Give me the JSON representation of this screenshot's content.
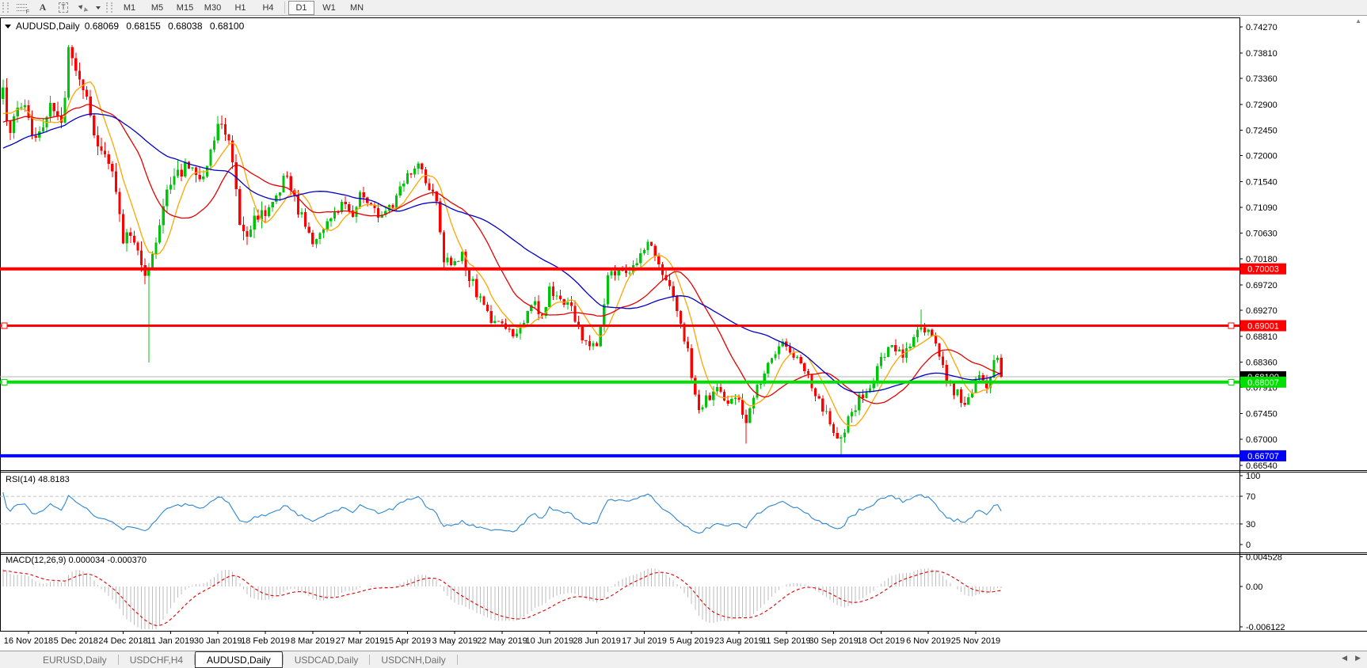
{
  "toolbar": {
    "icon_glyphs": {
      "fib": "F",
      "text": "A",
      "text_label": "T"
    },
    "timeframes": [
      {
        "label": "M1",
        "active": false
      },
      {
        "label": "M5",
        "active": false
      },
      {
        "label": "M15",
        "active": false
      },
      {
        "label": "M30",
        "active": false
      },
      {
        "label": "H1",
        "active": false
      },
      {
        "label": "H4",
        "active": false
      },
      {
        "label": "D1",
        "active": true
      },
      {
        "label": "W1",
        "active": false
      },
      {
        "label": "MN",
        "active": false
      }
    ]
  },
  "chart": {
    "title_symbol": "AUDUSD,Daily",
    "ohlc": {
      "open": "0.68069",
      "high": "0.68155",
      "low": "0.68038",
      "close": "0.68100"
    },
    "collapse_arrow_glyph": "▲"
  },
  "chart_data": {
    "type": "candlestick",
    "symbol": "AUDUSD",
    "timeframe": "Daily",
    "last_close": 0.681,
    "bar_count": 268,
    "bars_per_label": 13,
    "candle_colors": {
      "up": "#00C40A",
      "down": "#FF0000"
    },
    "price_axis_ticks": [
      "0.74270",
      "0.73810",
      "0.73360",
      "0.72900",
      "0.72450",
      "0.72000",
      "0.71540",
      "0.71090",
      "0.70630",
      "0.70180",
      "0.69720",
      "0.69270",
      "0.68810",
      "0.68360",
      "0.67910",
      "0.67450",
      "0.67000",
      "0.66540"
    ],
    "x_axis_labels": [
      "16 Nov 2018",
      "5 Dec 2018",
      "24 Dec 2018",
      "11 Jan 2019",
      "30 Jan 2019",
      "18 Feb 2019",
      "8 Mar 2019",
      "27 Mar 2019",
      "15 Apr 2019",
      "3 May 2019",
      "22 May 2019",
      "10 Jun 2019",
      "28 Jun 2019",
      "17 Jul 2019",
      "5 Aug 2019",
      "23 Aug 2019",
      "11 Sep 2019",
      "30 Sep 2019",
      "18 Oct 2019",
      "6 Nov 2019",
      "25 Nov 2019"
    ],
    "hlines": [
      {
        "price": 0.70003,
        "label": "0.70003",
        "color": "#FF0000",
        "thickness": 4,
        "handles": false
      },
      {
        "price": 0.69001,
        "label": "0.69001",
        "color": "#FF0000",
        "thickness": 3,
        "handles": true
      },
      {
        "price": 0.68007,
        "label": "0.68007",
        "color": "#00E000",
        "thickness": 4,
        "handles": true
      },
      {
        "price": 0.66707,
        "label": "0.66707",
        "color": "#0000FF",
        "thickness": 4,
        "handles": false
      }
    ],
    "current_price": {
      "value": 0.681,
      "label": "0.68100",
      "line_color": "#B4B4B4",
      "badge_color": "#000000"
    },
    "moving_averages": [
      {
        "period": 8,
        "color": "#FFA500",
        "name": "fast"
      },
      {
        "period": 21,
        "color": "#E60000",
        "name": "medium"
      },
      {
        "period": 45,
        "color": "#0000C8",
        "name": "slow"
      }
    ],
    "price_waypoints": [
      [
        -68,
        0.706
      ],
      [
        -52,
        0.7125
      ],
      [
        -36,
        0.7185
      ],
      [
        -20,
        0.7262
      ],
      [
        -12,
        0.7248
      ],
      [
        -7,
        0.731
      ],
      [
        -5,
        0.7238
      ],
      [
        -3,
        0.7272
      ],
      [
        -1,
        0.7298
      ],
      [
        0,
        0.727
      ],
      [
        2,
        0.7225
      ],
      [
        4,
        0.7258
      ],
      [
        6,
        0.7298
      ],
      [
        9,
        0.7245
      ],
      [
        11,
        0.7378
      ],
      [
        13,
        0.735
      ],
      [
        16,
        0.729
      ],
      [
        18,
        0.7242
      ],
      [
        21,
        0.7192
      ],
      [
        24,
        0.7142
      ],
      [
        26,
        0.7042
      ],
      [
        28,
        0.7068
      ],
      [
        30,
        0.7035
      ],
      [
        32,
        0.6998
      ],
      [
        33,
        0.6992
      ],
      [
        35,
        0.7058
      ],
      [
        38,
        0.7138
      ],
      [
        41,
        0.7165
      ],
      [
        43,
        0.719
      ],
      [
        46,
        0.7152
      ],
      [
        49,
        0.719
      ],
      [
        52,
        0.7256
      ],
      [
        53,
        0.727
      ],
      [
        55,
        0.7225
      ],
      [
        58,
        0.7092
      ],
      [
        60,
        0.7062
      ],
      [
        63,
        0.709
      ],
      [
        65,
        0.7098
      ],
      [
        68,
        0.7132
      ],
      [
        71,
        0.7168
      ],
      [
        74,
        0.7102
      ],
      [
        76,
        0.7082
      ],
      [
        78,
        0.7042
      ],
      [
        81,
        0.7072
      ],
      [
        84,
        0.7095
      ],
      [
        87,
        0.7118
      ],
      [
        89,
        0.7088
      ],
      [
        91,
        0.7128
      ],
      [
        94,
        0.7106
      ],
      [
        97,
        0.7088
      ],
      [
        100,
        0.7118
      ],
      [
        104,
        0.7172
      ],
      [
        107,
        0.7182
      ],
      [
        110,
        0.7148
      ],
      [
        112,
        0.7122
      ],
      [
        114,
        0.7018
      ],
      [
        117,
        0.7006
      ],
      [
        119,
        0.7022
      ],
      [
        121,
        0.6988
      ],
      [
        124,
        0.6942
      ],
      [
        127,
        0.6906
      ],
      [
        130,
        0.6898
      ],
      [
        133,
        0.6878
      ],
      [
        136,
        0.6908
      ],
      [
        139,
        0.6938
      ],
      [
        141,
        0.6918
      ],
      [
        143,
        0.6962
      ],
      [
        146,
        0.6948
      ],
      [
        149,
        0.6928
      ],
      [
        152,
        0.6882
      ],
      [
        154,
        0.6858
      ],
      [
        156,
        0.6872
      ],
      [
        159,
        0.6982
      ],
      [
        162,
        0.7002
      ],
      [
        165,
        0.6988
      ],
      [
        167,
        0.7012
      ],
      [
        169,
        0.7038
      ],
      [
        171,
        0.7042
      ],
      [
        174,
        0.6988
      ],
      [
        177,
        0.6952
      ],
      [
        179,
        0.6902
      ],
      [
        181,
        0.6862
      ],
      [
        182,
        0.6802
      ],
      [
        184,
        0.6758
      ],
      [
        186,
        0.6772
      ],
      [
        189,
        0.6792
      ],
      [
        192,
        0.6758
      ],
      [
        195,
        0.6768
      ],
      [
        197,
        0.6738
      ],
      [
        200,
        0.6792
      ],
      [
        203,
        0.6832
      ],
      [
        206,
        0.6872
      ],
      [
        208,
        0.6862
      ],
      [
        211,
        0.6848
      ],
      [
        214,
        0.6812
      ],
      [
        217,
        0.6768
      ],
      [
        219,
        0.6742
      ],
      [
        221,
        0.6718
      ],
      [
        223,
        0.6704
      ],
      [
        226,
        0.6752
      ],
      [
        229,
        0.6778
      ],
      [
        232,
        0.6808
      ],
      [
        234,
        0.6838
      ],
      [
        237,
        0.6862
      ],
      [
        240,
        0.6852
      ],
      [
        243,
        0.6878
      ],
      [
        245,
        0.69
      ],
      [
        247,
        0.6892
      ],
      [
        249,
        0.6862
      ],
      [
        251,
        0.6822
      ],
      [
        253,
        0.6792
      ],
      [
        255,
        0.6778
      ],
      [
        257,
        0.6762
      ],
      [
        259,
        0.6788
      ],
      [
        261,
        0.6812
      ],
      [
        263,
        0.679
      ],
      [
        265,
        0.6838
      ],
      [
        266,
        0.6845
      ],
      [
        267,
        0.681
      ]
    ],
    "spikes": [
      {
        "bar": 11,
        "high": 0.7395
      },
      {
        "bar": 33,
        "low": 0.6835
      },
      {
        "bar": 185,
        "low": 0.6748
      },
      {
        "bar": 197,
        "low": 0.6692
      },
      {
        "bar": 223,
        "low": 0.6671
      },
      {
        "bar": 245,
        "high": 0.6929
      }
    ],
    "rsi": {
      "label": "RSI(14) 48.8183",
      "period": 14,
      "value": "48.8183",
      "color": "#2E86D0",
      "levels": [
        70,
        30
      ],
      "axis_labels": [
        {
          "v": 100,
          "label": "100"
        },
        {
          "v": 70,
          "label": "70"
        },
        {
          "v": 30,
          "label": "30"
        },
        {
          "v": 0,
          "label": "0"
        }
      ]
    },
    "macd": {
      "label": "MACD(12,26,9) 0.000034 -0.000370",
      "fast": 12,
      "slow": 26,
      "signal": 9,
      "values": "0.000034 -0.000370",
      "histogram_color": "#BDBDBD",
      "signal_color": "#E00000",
      "axis_labels": [
        {
          "v": 0.004528,
          "label": "0.004528"
        },
        {
          "v": 0,
          "label": "0.00"
        },
        {
          "v": -0.006122,
          "label": "-0.006122"
        }
      ]
    }
  },
  "tabs": {
    "items": [
      {
        "label": "EURUSD,Daily",
        "active": false
      },
      {
        "label": "USDCHF,H4",
        "active": false
      },
      {
        "label": "AUDUSD,Daily",
        "active": true
      },
      {
        "label": "USDCAD,Daily",
        "active": false
      },
      {
        "label": "USDCNH,Daily",
        "active": false
      }
    ],
    "scroll_left_glyph": "◀",
    "scroll_right_glyph": "▶"
  }
}
